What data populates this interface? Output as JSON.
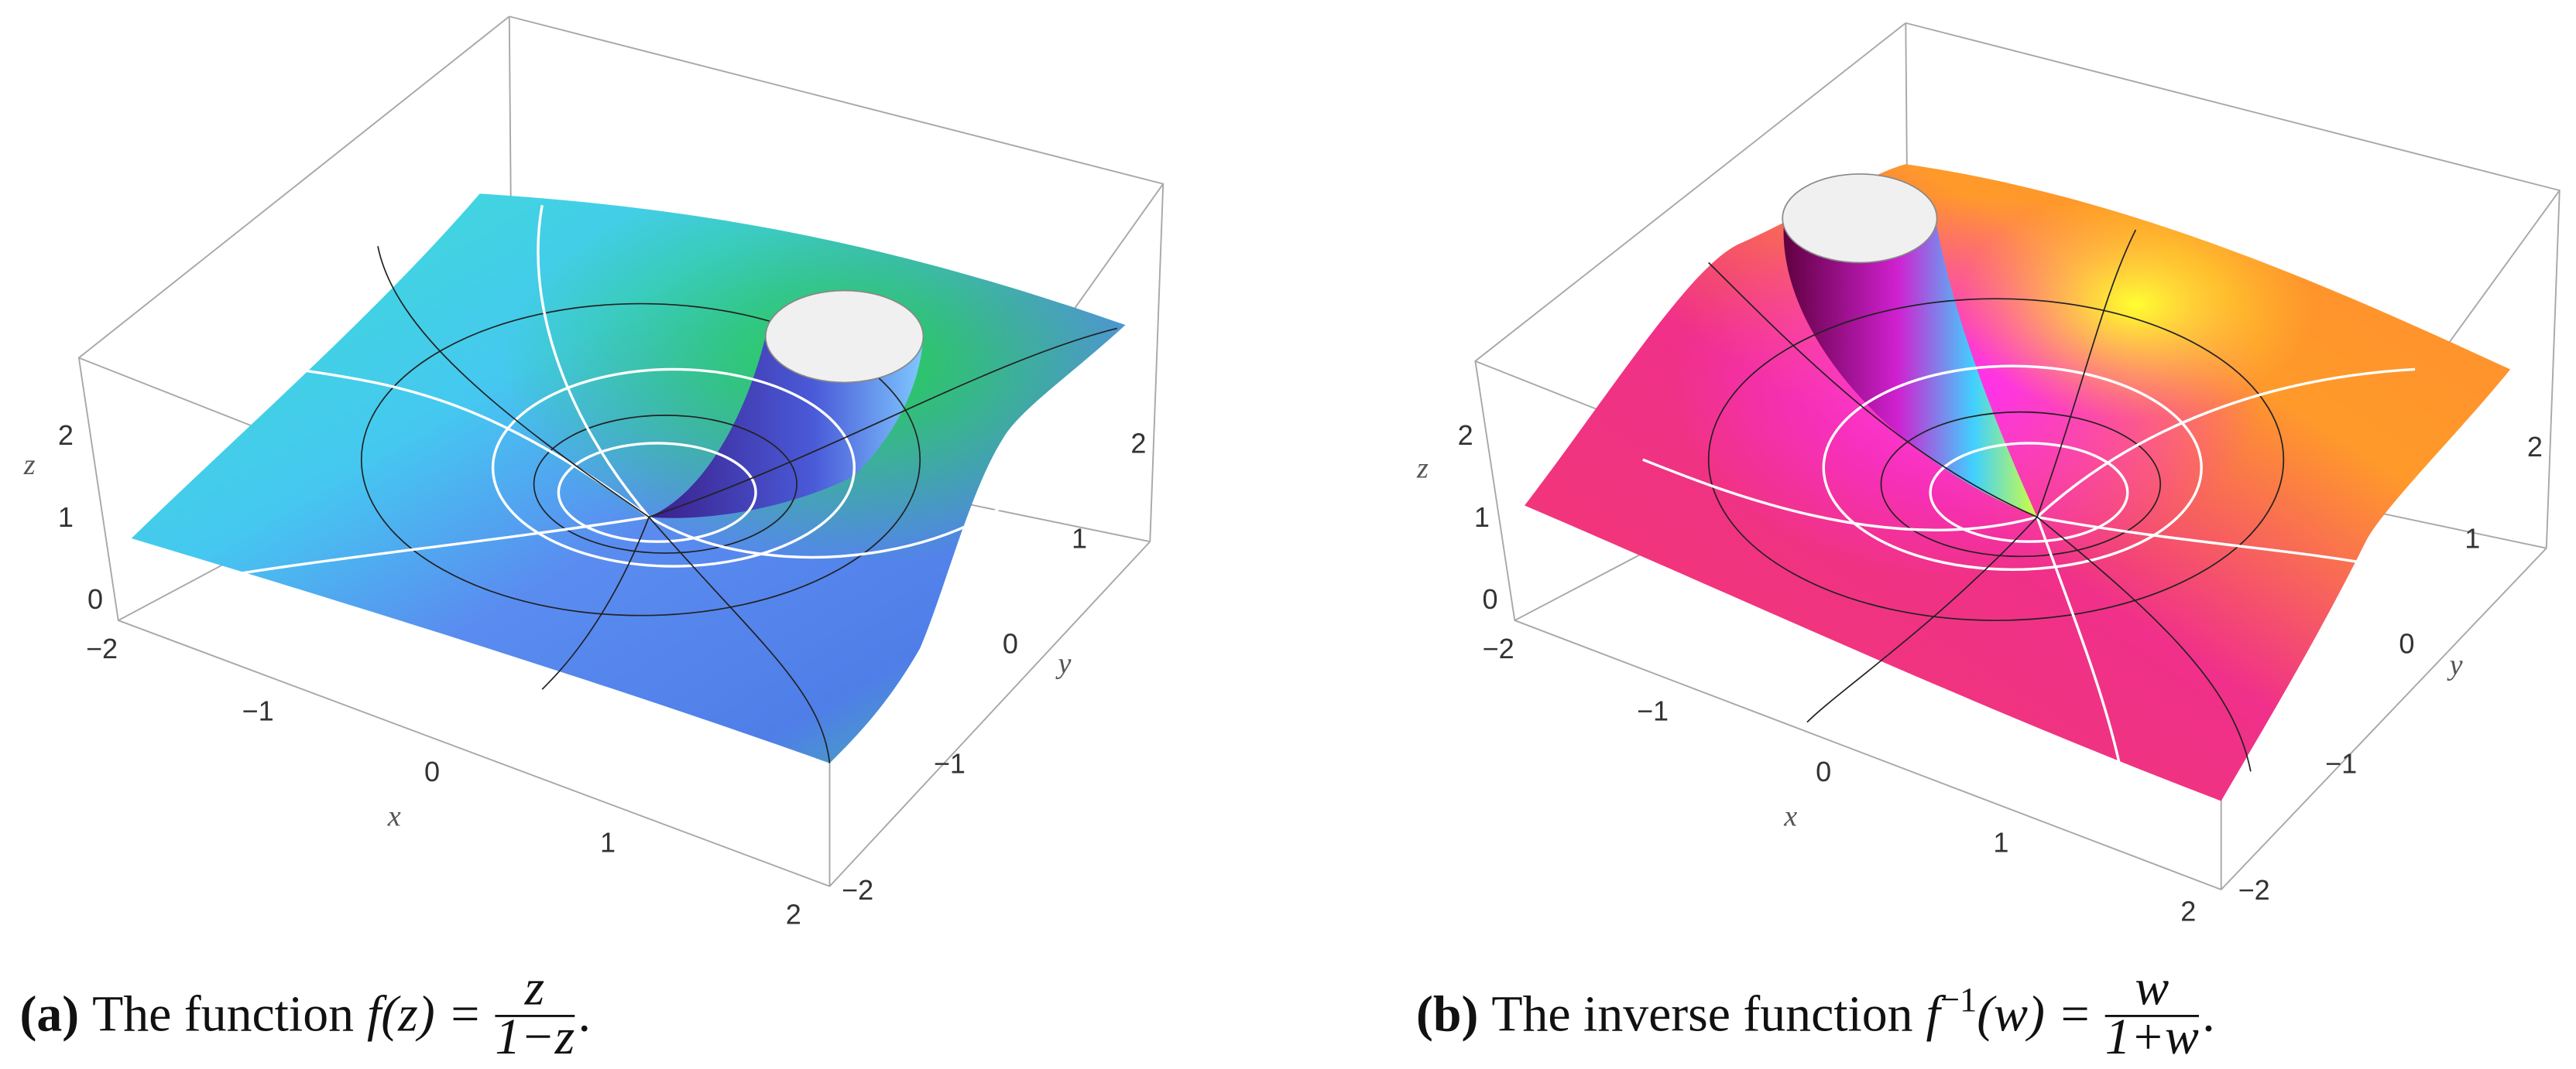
{
  "panels": [
    {
      "axes": {
        "z": {
          "label": "z",
          "ticks": [
            "0",
            "1",
            "2"
          ]
        },
        "x": {
          "label": "x",
          "ticks": [
            "−2",
            "−1",
            "0",
            "1",
            "2"
          ]
        },
        "y": {
          "label": "y",
          "ticks": [
            "−2",
            "−1",
            "0",
            "1",
            "2"
          ]
        }
      },
      "caption": {
        "label": "(a)",
        "text": "The function",
        "func": "f",
        "arg": "(z) =",
        "numerator": "z",
        "denominator": "1−z",
        "punctuation": "."
      }
    },
    {
      "axes": {
        "z": {
          "label": "z",
          "ticks": [
            "0",
            "1",
            "2"
          ]
        },
        "x": {
          "label": "x",
          "ticks": [
            "−2",
            "−1",
            "0",
            "1",
            "2"
          ]
        },
        "y": {
          "label": "y",
          "ticks": [
            "−2",
            "−1",
            "0",
            "1",
            "2"
          ]
        }
      },
      "caption": {
        "label": "(b)",
        "text": "The inverse function",
        "func": "f",
        "sup": "−1",
        "arg": "(w) =",
        "numerator": "w",
        "denominator": "1+w",
        "punctuation": "."
      }
    }
  ]
}
